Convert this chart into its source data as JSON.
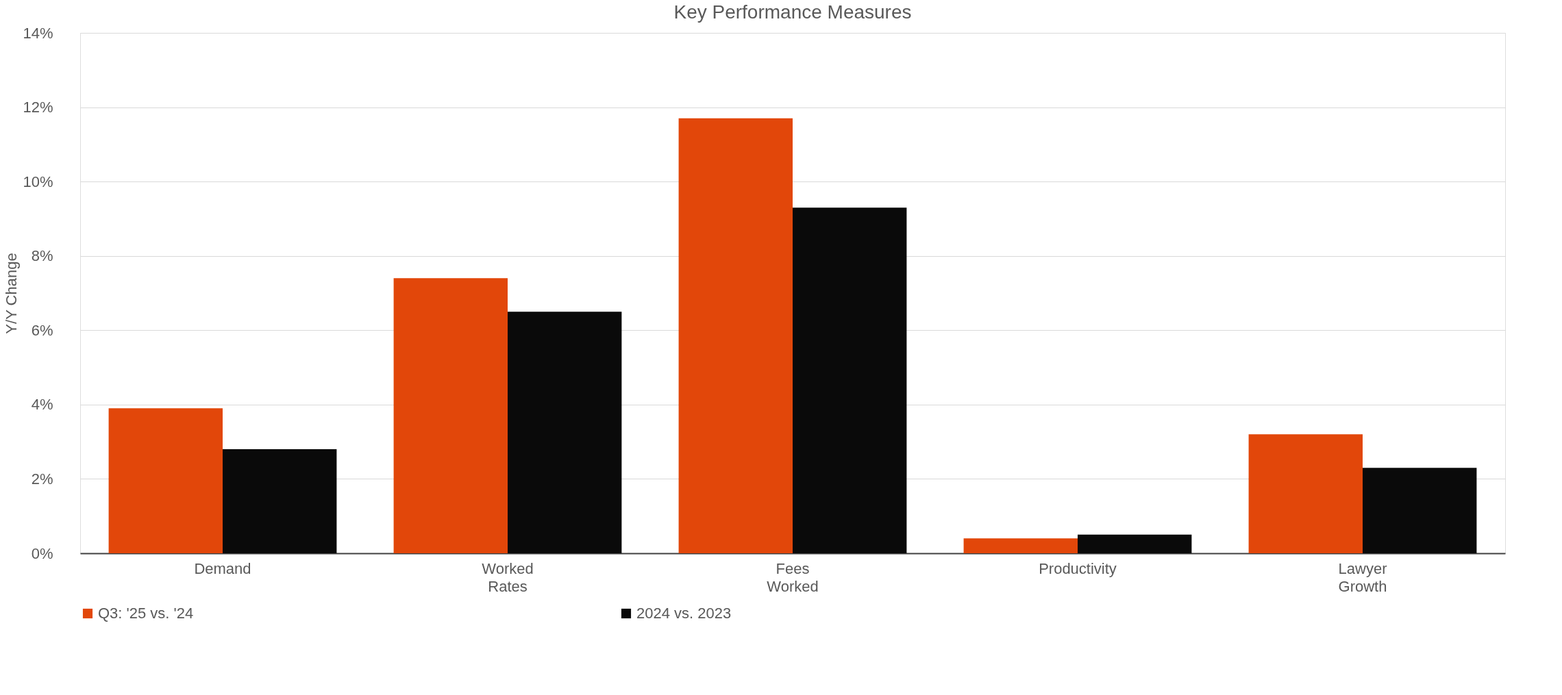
{
  "chart_data": {
    "type": "bar",
    "title": "Key Performance Measures",
    "ylabel": "Y/Y Change",
    "categories": [
      "Demand",
      "Worked Rates",
      "Fees Worked",
      "Productivity",
      "Lawyer Growth"
    ],
    "series": [
      {
        "name": "Q3: '25 vs. '24",
        "color": "#e2470a",
        "values": [
          3.9,
          7.4,
          11.7,
          0.4,
          3.2
        ]
      },
      {
        "name": "2024 vs. 2023",
        "color": "#0a0a0a",
        "values": [
          2.8,
          6.5,
          9.3,
          0.5,
          2.3
        ]
      }
    ],
    "ylim": [
      0,
      14
    ],
    "yticks": [
      {
        "value": 0,
        "label": "0%"
      },
      {
        "value": 2,
        "label": "2%"
      },
      {
        "value": 4,
        "label": "4%"
      },
      {
        "value": 6,
        "label": "6%"
      },
      {
        "value": 8,
        "label": "8%"
      },
      {
        "value": 10,
        "label": "10%"
      },
      {
        "value": 12,
        "label": "12%"
      },
      {
        "value": 14,
        "label": "14%"
      }
    ],
    "grid": "y",
    "legend": "bottom"
  }
}
